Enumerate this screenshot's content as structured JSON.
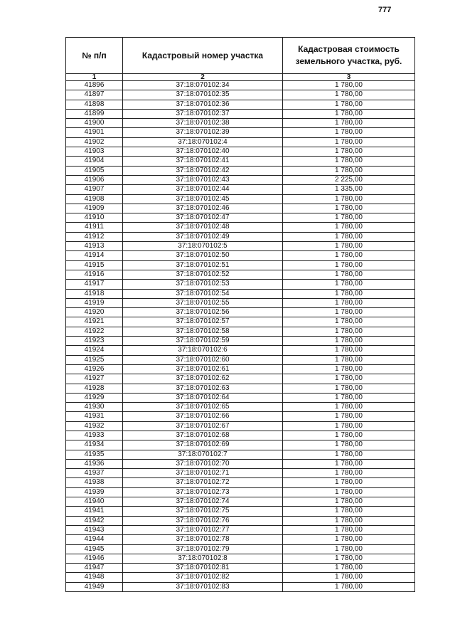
{
  "page_number": "777",
  "table": {
    "headers": [
      "№ п/п",
      "Кадастровый номер участка",
      "Кадастровая стоимость земельного участка, руб."
    ],
    "column_numbers": [
      "1",
      "2",
      "3"
    ],
    "rows": [
      [
        "41896",
        "37:18:070102:34",
        "1 780,00"
      ],
      [
        "41897",
        "37:18:070102:35",
        "1 780,00"
      ],
      [
        "41898",
        "37:18:070102:36",
        "1 780,00"
      ],
      [
        "41899",
        "37:18:070102:37",
        "1 780,00"
      ],
      [
        "41900",
        "37:18:070102:38",
        "1 780,00"
      ],
      [
        "41901",
        "37:18:070102:39",
        "1 780,00"
      ],
      [
        "41902",
        "37:18:070102:4",
        "1 780,00"
      ],
      [
        "41903",
        "37:18:070102:40",
        "1 780,00"
      ],
      [
        "41904",
        "37:18:070102:41",
        "1 780,00"
      ],
      [
        "41905",
        "37:18:070102:42",
        "1 780,00"
      ],
      [
        "41906",
        "37:18:070102:43",
        "2 225,00"
      ],
      [
        "41907",
        "37:18:070102:44",
        "1 335,00"
      ],
      [
        "41908",
        "37:18:070102:45",
        "1 780,00"
      ],
      [
        "41909",
        "37:18:070102:46",
        "1 780,00"
      ],
      [
        "41910",
        "37:18:070102:47",
        "1 780,00"
      ],
      [
        "41911",
        "37:18:070102:48",
        "1 780,00"
      ],
      [
        "41912",
        "37:18:070102:49",
        "1 780,00"
      ],
      [
        "41913",
        "37:18:070102:5",
        "1 780,00"
      ],
      [
        "41914",
        "37:18:070102:50",
        "1 780,00"
      ],
      [
        "41915",
        "37:18:070102:51",
        "1 780,00"
      ],
      [
        "41916",
        "37:18:070102:52",
        "1 780,00"
      ],
      [
        "41917",
        "37:18:070102:53",
        "1 780,00"
      ],
      [
        "41918",
        "37:18:070102:54",
        "1 780,00"
      ],
      [
        "41919",
        "37:18:070102:55",
        "1 780,00"
      ],
      [
        "41920",
        "37:18:070102:56",
        "1 780,00"
      ],
      [
        "41921",
        "37:18:070102:57",
        "1 780,00"
      ],
      [
        "41922",
        "37:18:070102:58",
        "1 780,00"
      ],
      [
        "41923",
        "37:18:070102:59",
        "1 780,00"
      ],
      [
        "41924",
        "37:18:070102:6",
        "1 780,00"
      ],
      [
        "41925",
        "37:18:070102:60",
        "1 780,00"
      ],
      [
        "41926",
        "37:18:070102:61",
        "1 780,00"
      ],
      [
        "41927",
        "37:18:070102:62",
        "1 780,00"
      ],
      [
        "41928",
        "37:18:070102:63",
        "1 780,00"
      ],
      [
        "41929",
        "37:18:070102:64",
        "1 780,00"
      ],
      [
        "41930",
        "37:18:070102:65",
        "1 780,00"
      ],
      [
        "41931",
        "37:18:070102:66",
        "1 780,00"
      ],
      [
        "41932",
        "37:18:070102:67",
        "1 780,00"
      ],
      [
        "41933",
        "37:18:070102:68",
        "1 780,00"
      ],
      [
        "41934",
        "37:18:070102:69",
        "1 780,00"
      ],
      [
        "41935",
        "37:18:070102:7",
        "1 780,00"
      ],
      [
        "41936",
        "37:18:070102:70",
        "1 780,00"
      ],
      [
        "41937",
        "37:18:070102:71",
        "1 780,00"
      ],
      [
        "41938",
        "37:18:070102:72",
        "1 780,00"
      ],
      [
        "41939",
        "37:18:070102:73",
        "1 780,00"
      ],
      [
        "41940",
        "37:18:070102:74",
        "1 780,00"
      ],
      [
        "41941",
        "37:18:070102:75",
        "1 780,00"
      ],
      [
        "41942",
        "37:18:070102:76",
        "1 780,00"
      ],
      [
        "41943",
        "37:18:070102:77",
        "1 780,00"
      ],
      [
        "41944",
        "37:18:070102:78",
        "1 780,00"
      ],
      [
        "41945",
        "37:18:070102:79",
        "1 780,00"
      ],
      [
        "41946",
        "37:18:070102:8",
        "1 780,00"
      ],
      [
        "41947",
        "37:18:070102:81",
        "1 780,00"
      ],
      [
        "41948",
        "37:18:070102:82",
        "1 780,00"
      ],
      [
        "41949",
        "37:18:070102:83",
        "1 780,00"
      ]
    ]
  }
}
